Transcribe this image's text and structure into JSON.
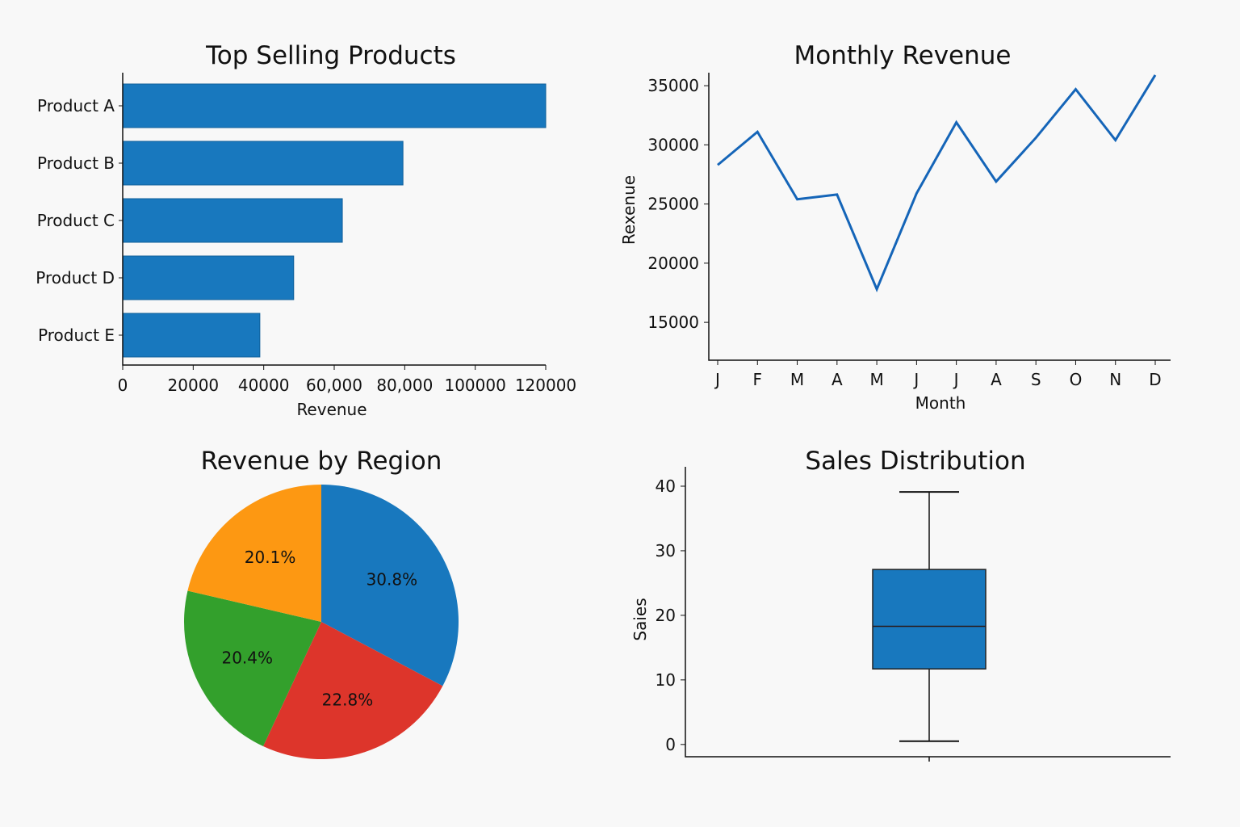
{
  "colors": {
    "bar": "#1878be",
    "line": "#1565b8",
    "box": "#1878be",
    "pie": [
      "#1878be",
      "#dd352b",
      "#33a02c",
      "#fd9812"
    ]
  },
  "chart_data": [
    {
      "type": "bar",
      "orientation": "horizontal",
      "title": "Top Selling Products",
      "xlabel": "Revenue",
      "ylabel": "",
      "categories": [
        "Product A",
        "Product B",
        "Product C",
        "Product D",
        "Product E"
      ],
      "values": [
        120000,
        79500,
        62300,
        48500,
        38900
      ],
      "xlim": [
        0,
        120000
      ],
      "xtick_values": [
        0,
        20000,
        40000,
        60000,
        80000,
        100000,
        120000
      ],
      "xtick_labels": [
        "0",
        "20000",
        "40000",
        "60,000",
        "80,000",
        "100000",
        "120000"
      ],
      "grid": false
    },
    {
      "type": "line",
      "title": "Monthly Revenue",
      "xlabel": "Month",
      "ylabel": "Rexenue",
      "categories": [
        "J",
        "F",
        "M",
        "A",
        "M",
        "J",
        "J",
        "A",
        "S",
        "O",
        "N",
        "D"
      ],
      "values": [
        28300,
        31100,
        25400,
        25800,
        17800,
        25900,
        31900,
        26900,
        30600,
        34700,
        30400,
        35900
      ],
      "ylim": [
        11800,
        36100
      ],
      "ytick_values": [
        15000,
        20000,
        25000,
        30000,
        35000
      ],
      "ytick_labels": [
        "15000",
        "20000",
        "25000",
        "30000",
        "35000"
      ],
      "grid": false
    },
    {
      "type": "pie",
      "title": "Revenue by Region",
      "labels": [
        "30.8%",
        "22.8%",
        "20.4%",
        "20.1%"
      ],
      "values": [
        30.8,
        22.8,
        20.4,
        20.1
      ],
      "start_angle": "top, clockwise"
    },
    {
      "type": "box",
      "title": "Sales Distribution",
      "xlabel": "",
      "ylabel": "Saies",
      "whisker_low": 0.5,
      "q1": 11.7,
      "median": 18.3,
      "q3": 27.1,
      "whisker_high": 39.1,
      "ylim": [
        -1.9,
        43
      ],
      "ytick_values": [
        0,
        10,
        20,
        30,
        40
      ],
      "ytick_labels": [
        "0",
        "10",
        "20",
        "30",
        "40"
      ],
      "grid": false
    }
  ]
}
